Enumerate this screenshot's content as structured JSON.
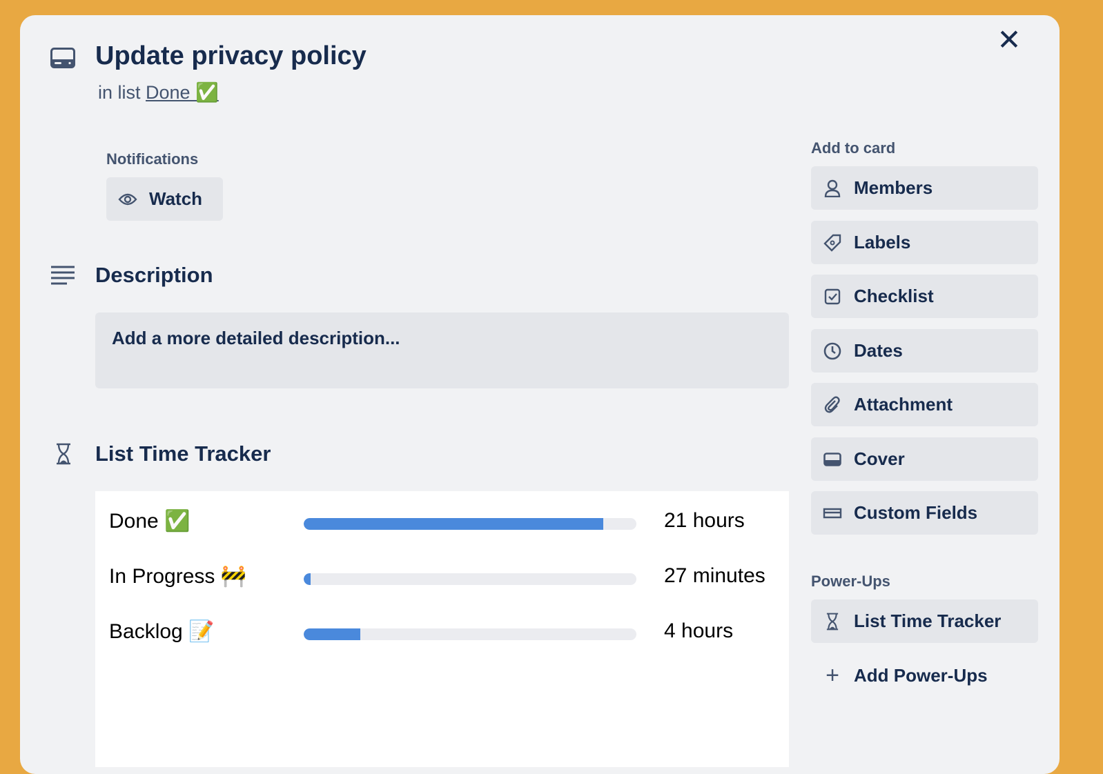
{
  "card": {
    "title": "Update privacy policy",
    "in_list_prefix": "in list",
    "list_name": "Done ✅"
  },
  "notifications": {
    "label": "Notifications",
    "watch_label": "Watch"
  },
  "description": {
    "heading": "Description",
    "placeholder": "Add a more detailed description..."
  },
  "tracker": {
    "heading": "List Time Tracker",
    "accent": "#4A89DC",
    "rows": [
      {
        "name": "Done ✅",
        "duration": "21 hours",
        "fraction": 0.9
      },
      {
        "name": "In Progress 🚧",
        "duration": "27 minutes",
        "fraction": 0.02
      },
      {
        "name": "Backlog 📝",
        "duration": "4 hours",
        "fraction": 0.17
      }
    ]
  },
  "sidebar": {
    "add_to_card_label": "Add to card",
    "items": [
      {
        "label": "Members",
        "icon": "person-icon"
      },
      {
        "label": "Labels",
        "icon": "tag-icon"
      },
      {
        "label": "Checklist",
        "icon": "checkbox-icon"
      },
      {
        "label": "Dates",
        "icon": "clock-icon"
      },
      {
        "label": "Attachment",
        "icon": "paperclip-icon"
      },
      {
        "label": "Cover",
        "icon": "cover-icon"
      },
      {
        "label": "Custom Fields",
        "icon": "field-icon"
      }
    ],
    "powerups_label": "Power-Ups",
    "powerup_item": "List Time Tracker",
    "add_powerups": "Add Power-Ups"
  },
  "colors": {
    "background": "#E8A842",
    "modal": "#F1F2F4",
    "button": "#E4E6EA"
  }
}
